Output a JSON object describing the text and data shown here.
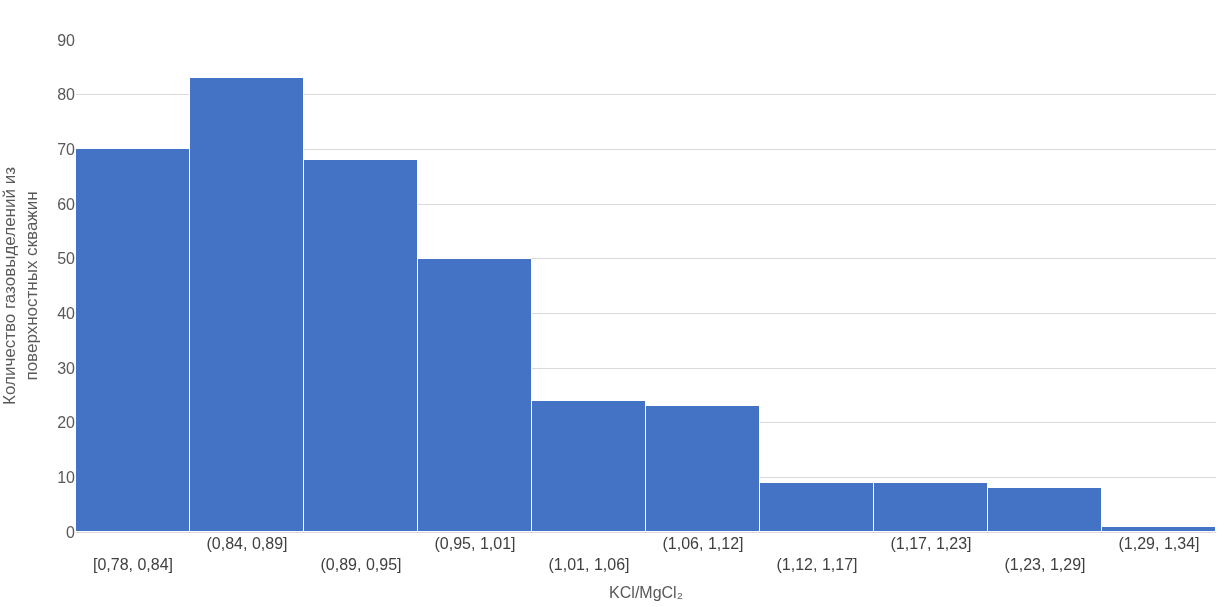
{
  "chart_data": {
    "type": "bar",
    "xlabel": "KCl/MgCl₂",
    "ylabel": "Количество газовыделений из поверхностных скважин",
    "categories": [
      "[0,78, 0,84]",
      "(0,84, 0,89]",
      "(0,89, 0,95]",
      "(0,95, 1,01]",
      "(1,01, 1,06]",
      "(1,06, 1,12]",
      "(1,12, 1,17]",
      "(1,17, 1,23]",
      "(1,23, 1,29]",
      "(1,29, 1,34]"
    ],
    "values": [
      70,
      83,
      68,
      50,
      24,
      23,
      9,
      9,
      8,
      1
    ],
    "color": "#4472c4",
    "ylim": [
      0,
      90
    ],
    "yticks": [
      0,
      10,
      20,
      30,
      40,
      50,
      60,
      70,
      80,
      90
    ],
    "grid": "y",
    "legend": false
  }
}
